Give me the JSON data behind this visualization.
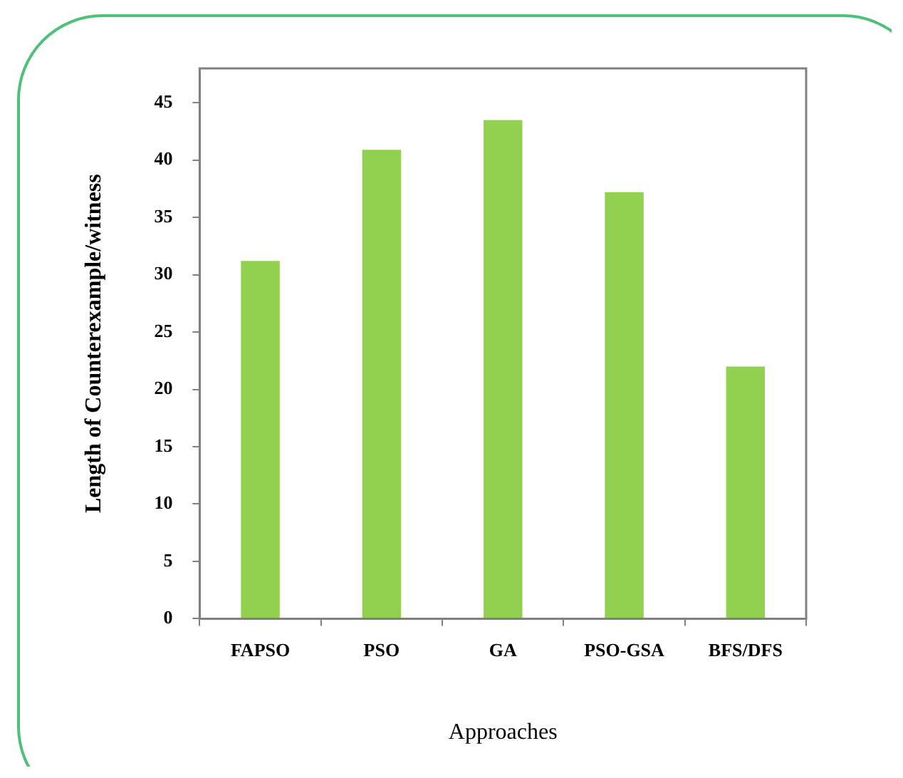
{
  "chart_data": {
    "type": "bar",
    "xlabel": "Approaches",
    "ylabel": "Length of Counterexample/witness",
    "categories": [
      "FAPSO",
      "PSO",
      "GA",
      "PSO-GSA",
      "BFS/DFS"
    ],
    "values": [
      31.2,
      40.9,
      43.5,
      37.2,
      22
    ],
    "color": "#92d050",
    "ylim": [
      0,
      48
    ],
    "yticks": [
      0,
      5,
      10,
      15,
      20,
      25,
      30,
      35,
      40,
      45
    ],
    "grid": false,
    "legend": false
  }
}
